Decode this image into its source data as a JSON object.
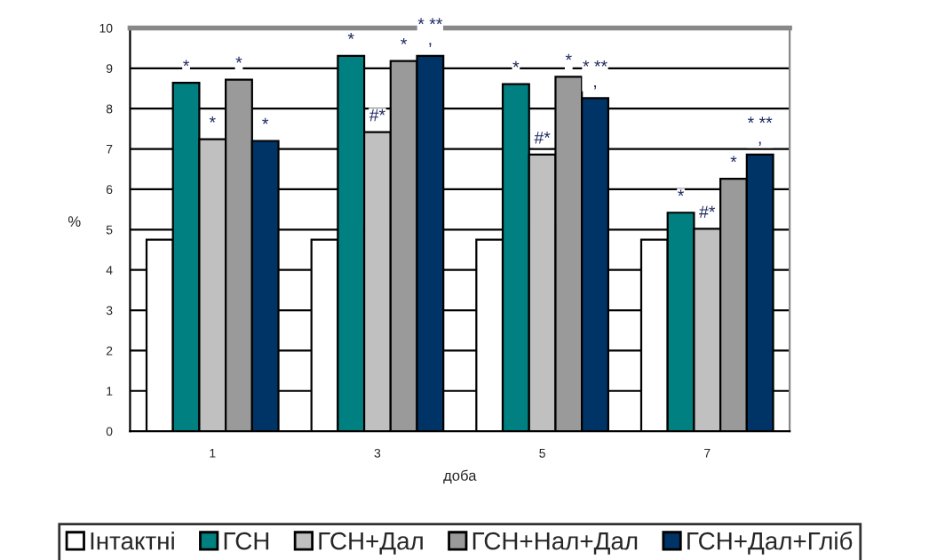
{
  "chart_data": {
    "type": "bar",
    "xlabel": "доба",
    "ylabel": "%",
    "categories": [
      "1",
      "3",
      "5",
      "7"
    ],
    "series": [
      {
        "name": "Інтактні",
        "color": "#ffffff",
        "values": [
          4.75,
          4.75,
          4.75,
          4.75
        ]
      },
      {
        "name": "ГСН",
        "color": "#008080",
        "values": [
          8.64,
          9.31,
          8.61,
          5.42
        ],
        "value_labels": [
          "*",
          "*",
          "*",
          "*"
        ]
      },
      {
        "name": "ГСН+Дал",
        "color": "#c0c0c0",
        "values": [
          7.24,
          7.42,
          6.86,
          5.02
        ],
        "value_labels": [
          "*",
          "#*",
          "#*",
          "#*"
        ]
      },
      {
        "name": "ГСН+Нал+Дал",
        "color": "#9a9a9a",
        "values": [
          8.72,
          9.18,
          8.79,
          6.26
        ],
        "value_labels": [
          "*",
          "*",
          "*",
          "*"
        ]
      },
      {
        "name": "ГСН+Дал+Гліб",
        "color": "#003366",
        "values": [
          7.2,
          9.31,
          8.26,
          6.86
        ],
        "value_labels": [
          "*",
          "* **\n,",
          "* **\n,",
          "* **\n,"
        ]
      }
    ],
    "ylim": [
      0,
      10
    ],
    "yticks": [
      0,
      1,
      2,
      3,
      4,
      5,
      6,
      7,
      8,
      9,
      10
    ],
    "grid": "y",
    "legend": "bottom"
  }
}
